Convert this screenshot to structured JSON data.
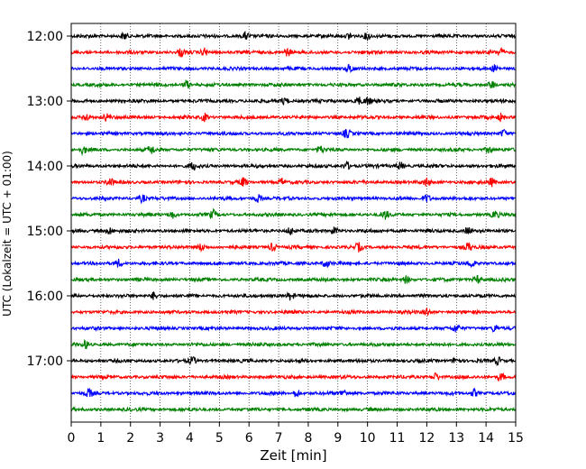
{
  "chart_data": {
    "type": "line",
    "title": "",
    "xlabel": "Zeit  [min]",
    "ylabel": "UTC (Lokalzeit = UTC + 01:00)",
    "xlim": [
      0,
      15
    ],
    "x_ticks": [
      "0",
      "1",
      "2",
      "3",
      "4",
      "5",
      "6",
      "7",
      "8",
      "9",
      "10",
      "11",
      "12",
      "13",
      "14",
      "15"
    ],
    "y_ticks": [
      "12:00",
      "13:00",
      "14:00",
      "15:00",
      "16:00",
      "17:00"
    ],
    "grid": "vertical dotted",
    "trace_interval_minutes": 15,
    "first_trace": "12:00",
    "trace_colors": [
      "#000000",
      "#ff0000",
      "#0000ff",
      "#008000"
    ],
    "series": [
      {
        "start": "12:00",
        "color": "#000000",
        "spikes_min": [
          1.8,
          5.9,
          9.4,
          10.0
        ]
      },
      {
        "start": "12:15",
        "color": "#ff0000",
        "spikes_min": [
          3.7,
          4.5,
          7.3,
          14.5
        ]
      },
      {
        "start": "12:30",
        "color": "#0000ff",
        "spikes_min": [
          9.4,
          14.3
        ]
      },
      {
        "start": "12:45",
        "color": "#008000",
        "spikes_min": [
          3.9,
          14.2
        ]
      },
      {
        "start": "13:00",
        "color": "#000000",
        "spikes_min": [
          7.2,
          9.7,
          10.0
        ]
      },
      {
        "start": "13:15",
        "color": "#ff0000",
        "spikes_min": [
          0.5,
          1.2,
          4.5,
          14.5
        ]
      },
      {
        "start": "13:30",
        "color": "#0000ff",
        "spikes_min": [
          9.3,
          14.6
        ]
      },
      {
        "start": "13:45",
        "color": "#008000",
        "spikes_min": [
          0.4,
          2.7,
          8.4,
          14.1
        ]
      },
      {
        "start": "14:00",
        "color": "#000000",
        "spikes_min": [
          4.1,
          9.3,
          11.1
        ]
      },
      {
        "start": "14:15",
        "color": "#ff0000",
        "spikes_min": [
          1.3,
          5.8,
          7.1,
          12.0,
          14.2
        ]
      },
      {
        "start": "14:30",
        "color": "#0000ff",
        "spikes_min": [
          2.4,
          6.3,
          12.0
        ]
      },
      {
        "start": "14:45",
        "color": "#008000",
        "spikes_min": [
          3.4,
          4.8,
          10.6,
          14.3
        ]
      },
      {
        "start": "15:00",
        "color": "#000000",
        "spikes_min": [
          1.3,
          7.4,
          8.9,
          13.4
        ]
      },
      {
        "start": "15:15",
        "color": "#ff0000",
        "spikes_min": [
          4.4,
          6.8,
          9.7,
          13.4
        ]
      },
      {
        "start": "15:30",
        "color": "#0000ff",
        "spikes_min": [
          1.6,
          8.6,
          13.5
        ]
      },
      {
        "start": "15:45",
        "color": "#008000",
        "spikes_min": [
          11.3,
          13.7
        ]
      },
      {
        "start": "16:00",
        "color": "#000000",
        "spikes_min": [
          2.8,
          7.4
        ]
      },
      {
        "start": "16:15",
        "color": "#ff0000",
        "spikes_min": [
          12.0
        ]
      },
      {
        "start": "16:30",
        "color": "#0000ff",
        "spikes_min": [
          13.0,
          14.3
        ]
      },
      {
        "start": "16:45",
        "color": "#008000",
        "spikes_min": [
          0.5
        ]
      },
      {
        "start": "17:00",
        "color": "#000000",
        "spikes_min": [
          4.1,
          13.0,
          14.4
        ]
      },
      {
        "start": "17:15",
        "color": "#ff0000",
        "spikes_min": [
          12.3,
          14.5
        ]
      },
      {
        "start": "17:30",
        "color": "#0000ff",
        "spikes_min": [
          0.6,
          7.6,
          9.2,
          13.6
        ]
      },
      {
        "start": "17:45",
        "color": "#008000",
        "spikes_min": []
      }
    ]
  }
}
